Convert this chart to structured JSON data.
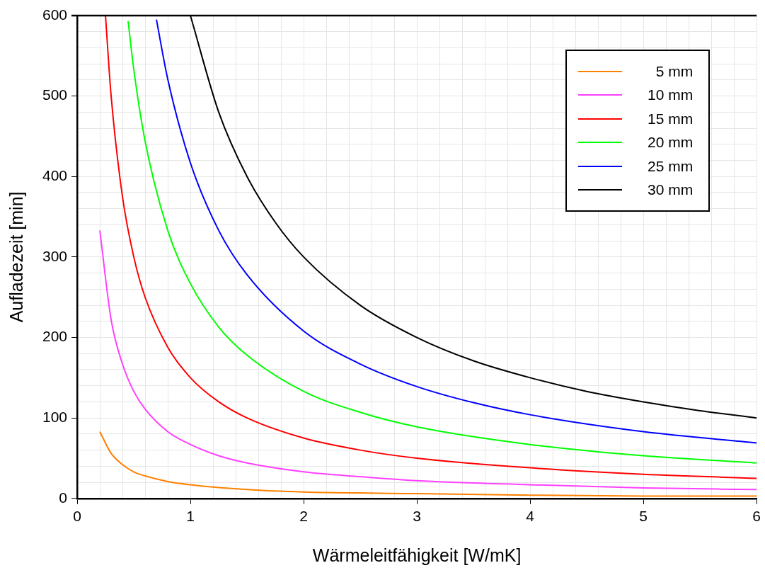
{
  "chart_data": {
    "type": "line",
    "xlabel": "Wärmeleitfähigkeit [W/mK]",
    "ylabel": "Aufladezeit [min]",
    "xlim": [
      0,
      6
    ],
    "ylim": [
      0,
      600
    ],
    "xticks": [
      0,
      {
        "value": 0.2,
        "label": null
      },
      {
        "value": 0.4,
        "label": null
      },
      {
        "value": 0.6,
        "label": null
      },
      {
        "value": 0.8,
        "label": null
      },
      1,
      {
        "value": 1.2,
        "label": null
      },
      {
        "value": 1.4,
        "label": null
      },
      {
        "value": 1.6,
        "label": null
      },
      {
        "value": 1.8,
        "label": null
      },
      2,
      {
        "value": 2.2,
        "label": null
      },
      {
        "value": 2.4,
        "label": null
      },
      {
        "value": 2.6,
        "label": null
      },
      {
        "value": 2.8,
        "label": null
      },
      3,
      {
        "value": 3.2,
        "label": null
      },
      {
        "value": 3.4,
        "label": null
      },
      {
        "value": 3.6,
        "label": null
      },
      {
        "value": 3.8,
        "label": null
      },
      4,
      {
        "value": 4.2,
        "label": null
      },
      {
        "value": 4.4,
        "label": null
      },
      {
        "value": 4.6,
        "label": null
      },
      {
        "value": 4.8,
        "label": null
      },
      5,
      {
        "value": 5.2,
        "label": null
      },
      {
        "value": 5.4,
        "label": null
      },
      {
        "value": 5.6,
        "label": null
      },
      {
        "value": 5.8,
        "label": null
      },
      6
    ],
    "yticks": [
      0,
      {
        "value": 20,
        "label": null
      },
      {
        "value": 40,
        "label": null
      },
      {
        "value": 60,
        "label": null
      },
      {
        "value": 80,
        "label": null
      },
      100,
      {
        "value": 120,
        "label": null
      },
      {
        "value": 140,
        "label": null
      },
      {
        "value": 160,
        "label": null
      },
      {
        "value": 180,
        "label": null
      },
      200,
      {
        "value": 220,
        "label": null
      },
      {
        "value": 240,
        "label": null
      },
      {
        "value": 260,
        "label": null
      },
      {
        "value": 280,
        "label": null
      },
      300,
      {
        "value": 320,
        "label": null
      },
      {
        "value": 340,
        "label": null
      },
      {
        "value": 360,
        "label": null
      },
      {
        "value": 380,
        "label": null
      },
      400,
      {
        "value": 420,
        "label": null
      },
      {
        "value": 440,
        "label": null
      },
      {
        "value": 460,
        "label": null
      },
      {
        "value": 480,
        "label": null
      },
      500,
      {
        "value": 520,
        "label": null
      },
      {
        "value": 540,
        "label": null
      },
      {
        "value": 560,
        "label": null
      },
      {
        "value": 580,
        "label": null
      },
      600
    ],
    "grid": true,
    "legend": "top right",
    "marker": "none",
    "line_style": "solid",
    "series": [
      {
        "name": "5 mm",
        "color": "#ff8000",
        "x": [
          0.2,
          0.3,
          0.4,
          0.5,
          0.6,
          0.8,
          1,
          1.5,
          2,
          3,
          4,
          5,
          6
        ],
        "values": [
          83,
          56,
          42,
          33,
          28,
          21,
          17,
          11,
          8,
          6,
          4,
          3,
          3
        ]
      },
      {
        "name": "10 mm",
        "color": "#ff40ff",
        "x": [
          0.2,
          0.3,
          0.4,
          0.5,
          0.6,
          0.8,
          1,
          1.25,
          1.5,
          2,
          2.5,
          3,
          4,
          5,
          6
        ],
        "values": [
          333,
          222,
          167,
          133,
          111,
          83,
          67,
          53,
          44,
          33,
          27,
          22,
          17,
          13,
          11
        ]
      },
      {
        "name": "15 mm",
        "color": "#ff0000",
        "x": [
          0.25,
          0.3,
          0.4,
          0.5,
          0.6,
          0.8,
          1,
          1.25,
          1.5,
          2,
          2.5,
          3,
          4,
          5,
          6
        ],
        "values": [
          600,
          500,
          375,
          300,
          250,
          188,
          150,
          120,
          100,
          75,
          60,
          50,
          38,
          30,
          25
        ]
      },
      {
        "name": "20 mm",
        "color": "#00ff00",
        "x": [
          0.45,
          0.5,
          0.6,
          0.8,
          1,
          1.25,
          1.5,
          2,
          2.5,
          3,
          4,
          5,
          6
        ],
        "values": [
          593,
          533,
          444,
          333,
          267,
          213,
          178,
          133,
          107,
          89,
          67,
          53,
          44
        ]
      },
      {
        "name": "25 mm",
        "color": "#0000ff",
        "x": [
          0.7,
          0.8,
          1,
          1.25,
          1.5,
          2,
          2.5,
          3,
          3.5,
          4,
          5,
          6
        ],
        "values": [
          595,
          521,
          417,
          333,
          278,
          208,
          167,
          139,
          119,
          104,
          83,
          69
        ]
      },
      {
        "name": "30 mm",
        "color": "#000000",
        "x": [
          1,
          1.25,
          1.5,
          1.75,
          2,
          2.5,
          3,
          3.5,
          4,
          4.5,
          5,
          5.5,
          6
        ],
        "values": [
          600,
          480,
          400,
          343,
          300,
          240,
          200,
          171,
          150,
          133,
          120,
          109,
          100
        ]
      }
    ]
  }
}
